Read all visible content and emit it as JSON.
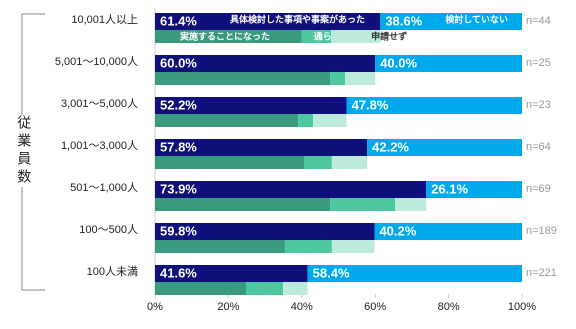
{
  "chart_data": {
    "type": "stacked-bar-horizontal",
    "y_axis_title": "従業員数",
    "categories": [
      "10,001人以上",
      "5,001〜10,000人",
      "3,001〜5,000人",
      "1,001〜3,000人",
      "501〜1,000人",
      "100〜500人",
      "100人未満"
    ],
    "n_labels": [
      "n=44",
      "n=25",
      "n=23",
      "n=64",
      "n=69",
      "n=189",
      "n=221"
    ],
    "series": [
      {
        "name": "具体検討した事項や事案があった",
        "color": "#10107a",
        "values": [
          61.4,
          60.0,
          52.2,
          57.8,
          73.9,
          59.8,
          41.6
        ],
        "value_labels": [
          "61.4%",
          "60.0%",
          "52.2%",
          "57.8%",
          "73.9%",
          "59.8%",
          "41.6%"
        ]
      },
      {
        "name": "検討していない",
        "color": "#00a8ec",
        "values": [
          38.6,
          40.0,
          47.8,
          42.2,
          26.1,
          40.2,
          58.4
        ],
        "value_labels": [
          "38.6%",
          "40.0%",
          "47.8%",
          "42.2%",
          "26.1%",
          "40.2%",
          "58.4%"
        ]
      }
    ],
    "sub_series": [
      {
        "name": "実施することになった",
        "color": "#3a9a80",
        "values": [
          40.0,
          47.7,
          39.0,
          40.6,
          47.7,
          35.4,
          24.8
        ]
      },
      {
        "name": "通らなかった",
        "color": "#4cc7a0",
        "values": [
          8.0,
          4.1,
          4.1,
          7.6,
          17.7,
          12.8,
          10.1
        ]
      },
      {
        "name": "申請せず",
        "color": "#bdebdb",
        "values": [
          13.4,
          8.2,
          9.1,
          9.6,
          8.5,
          11.6,
          6.7
        ]
      }
    ],
    "xlim": [
      0,
      100
    ],
    "xticks": [
      {
        "value": 0,
        "label": "0%"
      },
      {
        "value": 20,
        "label": "20%"
      },
      {
        "value": 40,
        "label": "40%"
      },
      {
        "value": 60,
        "label": "60%"
      },
      {
        "value": 80,
        "label": "80%"
      },
      {
        "value": 100,
        "label": "100%"
      }
    ]
  }
}
